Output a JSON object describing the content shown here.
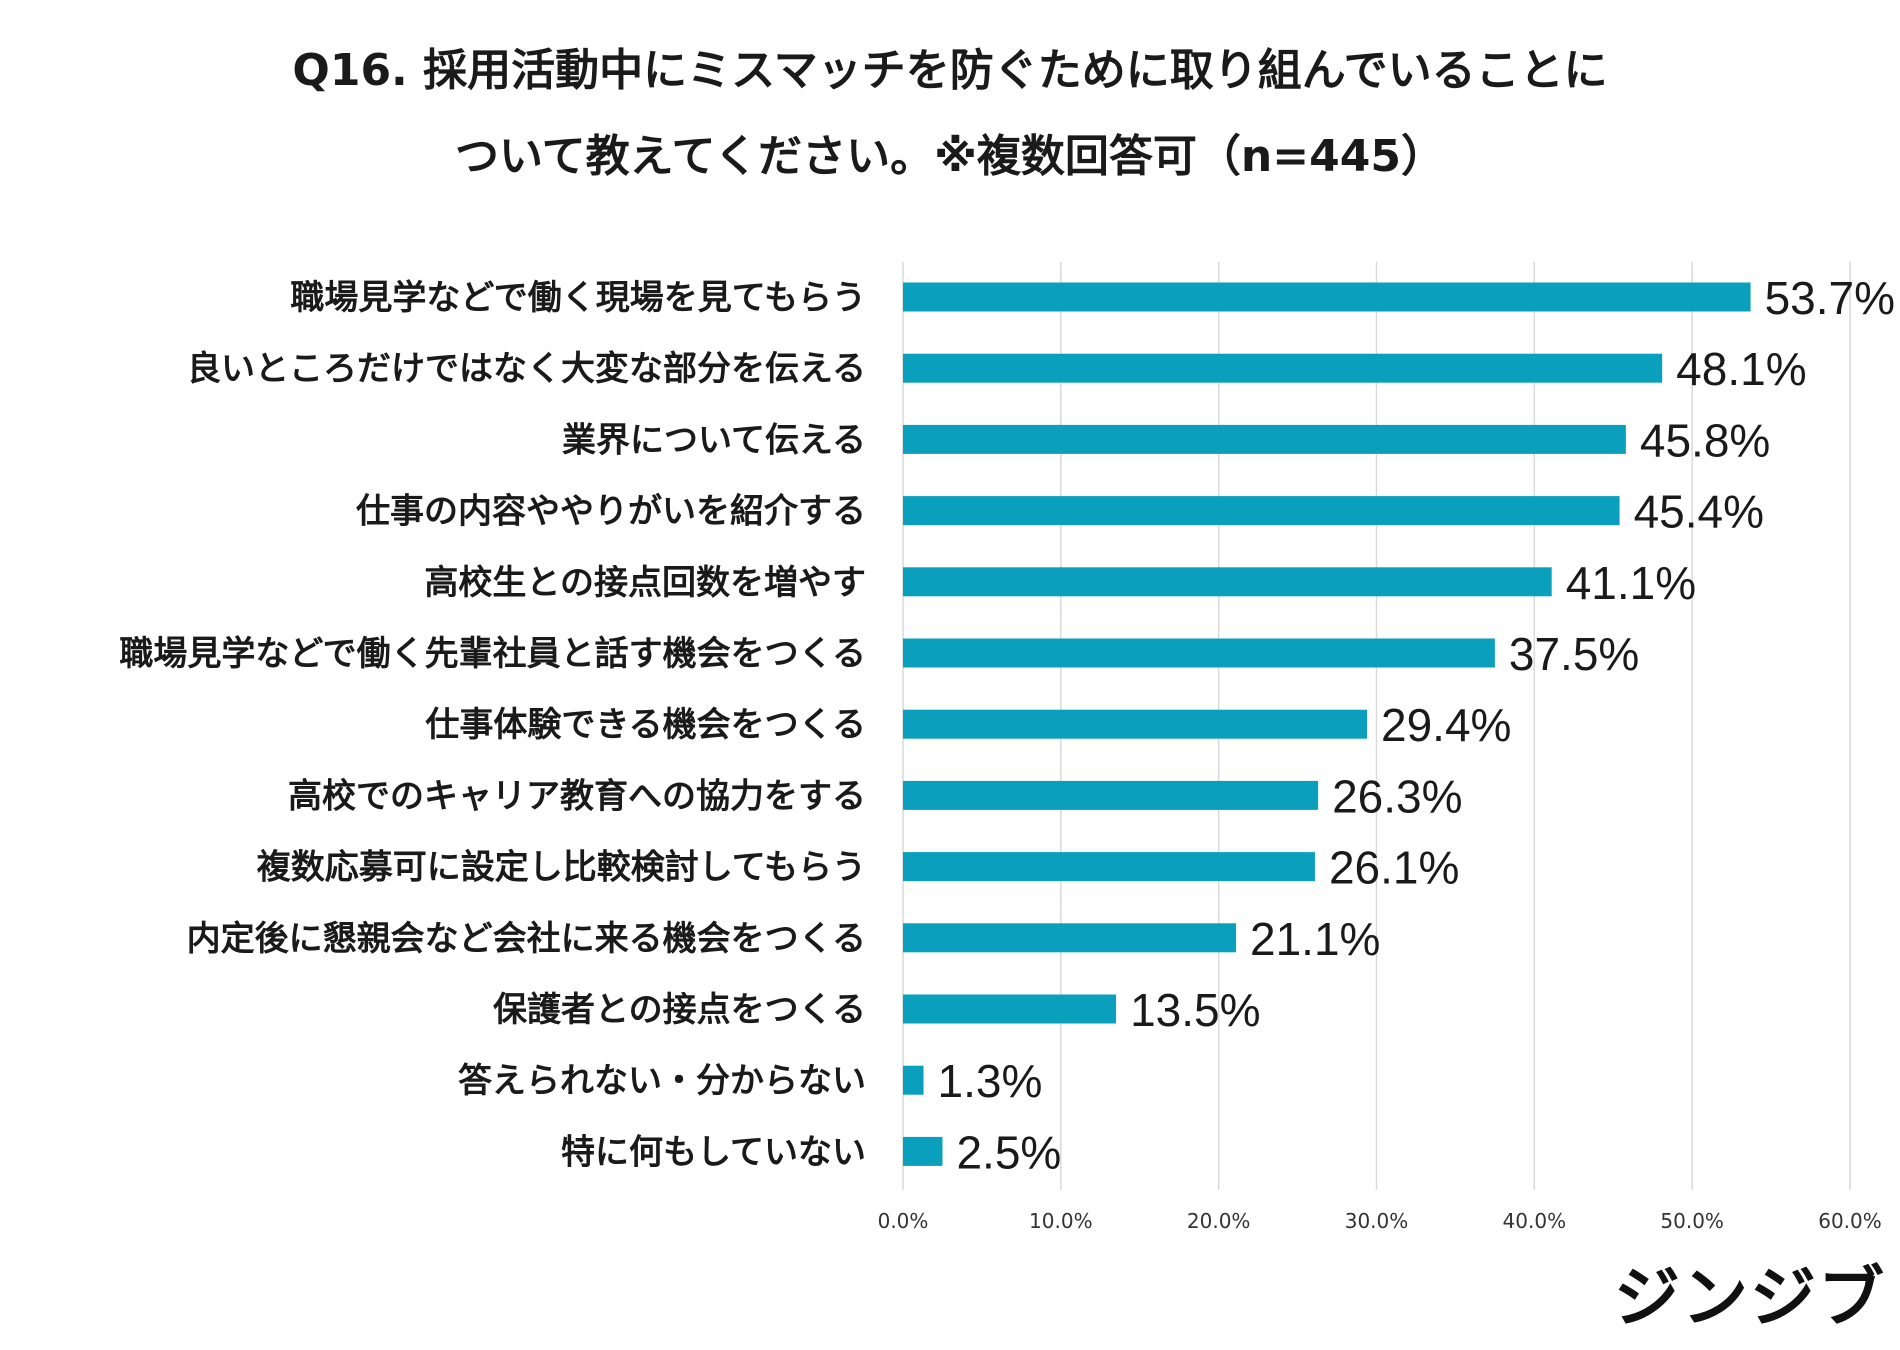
{
  "chart_data": {
    "type": "bar",
    "orientation": "horizontal",
    "title_lines": [
      "Q16. 採用活動中にミスマッチを防ぐために取り組んでいることに",
      "ついて教えてください。※複数回答可（n=445）"
    ],
    "categories": [
      "職場見学などで働く現場を見てもらう",
      "良いところだけではなく大変な部分を伝える",
      "業界について伝える",
      "仕事の内容ややりがいを紹介する",
      "高校生との接点回数を増やす",
      "職場見学などで働く先輩社員と話す機会をつくる",
      "仕事体験できる機会をつくる",
      "高校でのキャリア教育への協力をする",
      "複数応募可に設定し比較検討してもらう",
      "内定後に懇親会など会社に来る機会をつくる",
      "保護者との接点をつくる",
      "答えられない・分からない",
      "特に何もしていない"
    ],
    "values": [
      53.7,
      48.1,
      45.8,
      45.4,
      41.1,
      37.5,
      29.4,
      26.3,
      26.1,
      21.1,
      13.5,
      1.3,
      2.5
    ],
    "value_labels": [
      "53.7%",
      "48.1%",
      "45.8%",
      "45.4%",
      "41.1%",
      "37.5%",
      "29.4%",
      "26.3%",
      "26.1%",
      "21.1%",
      "13.5%",
      "1.3%",
      "2.5%"
    ],
    "xlim": [
      0,
      60
    ],
    "ticks": [
      0,
      10,
      20,
      30,
      40,
      50,
      60
    ],
    "tick_labels": [
      "0.0%",
      "10.0%",
      "20.0%",
      "30.0%",
      "40.0%",
      "50.0%",
      "60.0%"
    ],
    "grid": true,
    "bar_color": "#0aa0bd"
  },
  "logo_text": "ジンジブ"
}
